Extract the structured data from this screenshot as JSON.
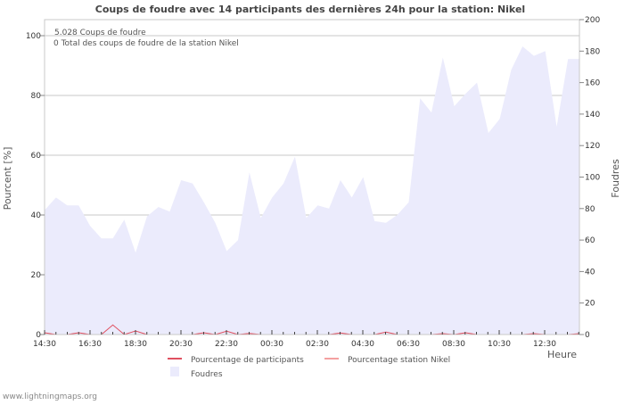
{
  "chart_data": {
    "type": "area",
    "title": "Coups de foudre avec 14 participants des dernières 24h pour la station: Nikel",
    "xlabel": "Heure",
    "ylabel_left": "Pourcent   [%]",
    "ylabel_right": "Foudres",
    "ylim_left": [
      0,
      100
    ],
    "ylim_right": [
      0,
      200
    ],
    "yticks_left": [
      "0",
      "20",
      "40",
      "60",
      "80",
      "100"
    ],
    "yticks_right": [
      "0",
      "20",
      "40",
      "60",
      "80",
      "100",
      "120",
      "140",
      "160",
      "180",
      "200"
    ],
    "xticks": [
      "14:30",
      "16:30",
      "18:30",
      "20:30",
      "22:30",
      "00:30",
      "02:30",
      "04:30",
      "06:30",
      "08:30",
      "10:30",
      "12:30"
    ],
    "grid": true,
    "legend_position": "bottom",
    "annotations": [
      "5.028  Coups de foudre",
      "0 Total des coups de foudre de la station Nikel"
    ],
    "series": [
      {
        "name": "Foudres",
        "axis": "right",
        "kind": "area",
        "color": "#ebebfc",
        "values": [
          79,
          87,
          82,
          82,
          69,
          61,
          61,
          73,
          52,
          75,
          81,
          78,
          98,
          96,
          84,
          71,
          53,
          60,
          103,
          74,
          87,
          96,
          113,
          74,
          82,
          80,
          98,
          87,
          100,
          72,
          71,
          76,
          84,
          150,
          141,
          176,
          145,
          153,
          160,
          128,
          137,
          168,
          183,
          177,
          180,
          132,
          175,
          175
        ]
      },
      {
        "name": "Pourcentage de participants",
        "axis": "left",
        "kind": "line",
        "color": "#e05060",
        "values": [
          0.6,
          0,
          0,
          0.6,
          0,
          0,
          3.2,
          0,
          1.2,
          0,
          0,
          0,
          0,
          0,
          0.6,
          0,
          1.1,
          0,
          0.4,
          0,
          0,
          0,
          0,
          0,
          0,
          0,
          0.5,
          0,
          0,
          0,
          0.8,
          0,
          0,
          0,
          0,
          0.3,
          0,
          0.6,
          0,
          0,
          0,
          0,
          0,
          0.3,
          0,
          0,
          0,
          0.3
        ]
      },
      {
        "name": "Pourcentage station Nikel",
        "axis": "left",
        "kind": "line",
        "color": "#f4a0a0",
        "values": [
          0,
          0,
          0,
          0,
          0,
          0,
          0,
          0,
          0,
          0,
          0,
          0,
          0,
          0,
          0,
          0,
          0,
          0,
          0,
          0,
          0,
          0,
          0,
          0,
          0,
          0,
          0,
          0,
          0,
          0,
          0,
          0,
          0,
          0,
          0,
          0,
          0,
          0,
          0,
          0,
          0,
          0,
          0,
          0,
          0,
          0,
          0,
          0
        ]
      }
    ]
  },
  "footer": "www.lightningmaps.org"
}
